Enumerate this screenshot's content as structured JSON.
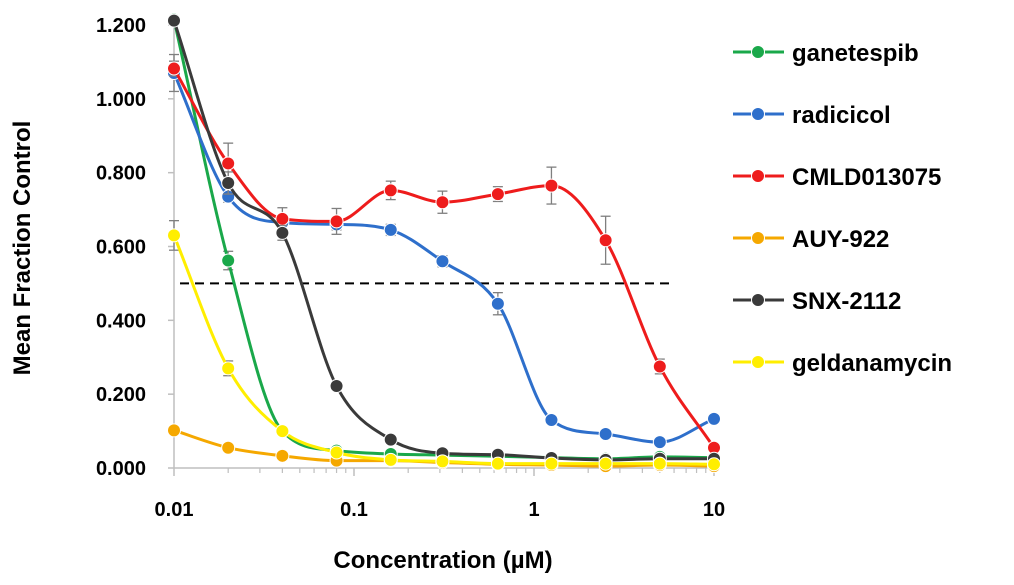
{
  "chart_data": {
    "type": "scatter",
    "xlabel": "Concentration (µM)",
    "ylabel": "Mean Fraction Control",
    "xscale": "log",
    "xlim": [
      0.01,
      10
    ],
    "ylim": [
      0,
      1.2
    ],
    "xticks": [
      0.01,
      0.1,
      1,
      10
    ],
    "xtick_labels": [
      "0.01",
      "0.1",
      "1",
      "10"
    ],
    "yticks": [
      0,
      0.2,
      0.4,
      0.6,
      0.8,
      1.0,
      1.2
    ],
    "ytick_labels": [
      "0.000",
      "0.200",
      "0.400",
      "0.600",
      "0.800",
      "1.000",
      "1.200"
    ],
    "grid": false,
    "legend_position": "right",
    "reference_line": {
      "y": 0.5,
      "style": "dashed",
      "x_range": [
        0.01,
        6
      ]
    },
    "series": [
      {
        "name": "ganetespib",
        "color": "#1aa84a",
        "x": [
          0.01,
          0.02,
          0.04,
          0.08,
          0.16,
          0.31,
          0.63,
          1.25,
          2.5,
          5,
          10
        ],
        "y": [
          1.215,
          0.562,
          0.1,
          0.047,
          0.038,
          0.035,
          0.032,
          0.028,
          0.025,
          0.03,
          0.028
        ],
        "err": [
          0,
          0.025,
          0.01,
          0.005,
          0.005,
          0.005,
          0.005,
          0.005,
          0.005,
          0.005,
          0.005
        ]
      },
      {
        "name": "radicicol",
        "color": "#2e6fcb",
        "x": [
          0.01,
          0.02,
          0.04,
          0.08,
          0.16,
          0.31,
          0.63,
          1.25,
          2.5,
          5,
          10
        ],
        "y": [
          1.07,
          0.735,
          0.665,
          0.66,
          0.645,
          0.56,
          0.445,
          0.13,
          0.092,
          0.07,
          0.133
        ],
        "err": [
          0.05,
          0.015,
          0.01,
          0.015,
          0.015,
          0.015,
          0.03,
          0.01,
          0.008,
          0.008,
          0.008
        ]
      },
      {
        "name": "CMLD013075",
        "color": "#ee1c1c",
        "x": [
          0.01,
          0.02,
          0.04,
          0.08,
          0.16,
          0.31,
          0.63,
          1.25,
          2.5,
          5,
          10
        ],
        "y": [
          1.082,
          0.825,
          0.675,
          0.668,
          0.752,
          0.72,
          0.742,
          0.765,
          0.617,
          0.275,
          0.055
        ],
        "err": [
          0.02,
          0.055,
          0.03,
          0.035,
          0.025,
          0.03,
          0.02,
          0.05,
          0.065,
          0.02,
          0.008
        ]
      },
      {
        "name": "AUY-922",
        "color": "#f5a800",
        "x": [
          0.01,
          0.02,
          0.04,
          0.08,
          0.16,
          0.31,
          0.63,
          1.25,
          2.5,
          5,
          10
        ],
        "y": [
          0.102,
          0.055,
          0.033,
          0.02,
          0.02,
          0.015,
          0.01,
          0.008,
          0.005,
          0.008,
          0.005
        ],
        "err": [
          0.005,
          0.005,
          0.004,
          0.004,
          0.004,
          0.004,
          0.004,
          0.004,
          0.004,
          0.004,
          0.004
        ]
      },
      {
        "name": "SNX-2112",
        "color": "#3a3a3a",
        "x": [
          0.01,
          0.02,
          0.04,
          0.08,
          0.16,
          0.31,
          0.63,
          1.25,
          2.5,
          5,
          10
        ],
        "y": [
          1.212,
          0.772,
          0.637,
          0.222,
          0.077,
          0.04,
          0.036,
          0.027,
          0.022,
          0.025,
          0.025
        ],
        "err": [
          0.01,
          0.03,
          0.02,
          0.01,
          0.008,
          0.005,
          0.005,
          0.005,
          0.005,
          0.005,
          0.005
        ]
      },
      {
        "name": "geldanamycin",
        "color": "#ffee00",
        "x": [
          0.01,
          0.02,
          0.04,
          0.08,
          0.16,
          0.31,
          0.63,
          1.25,
          2.5,
          5,
          10
        ],
        "y": [
          0.63,
          0.27,
          0.1,
          0.042,
          0.022,
          0.018,
          0.012,
          0.012,
          0.012,
          0.012,
          0.01
        ],
        "err": [
          0.04,
          0.02,
          0.01,
          0.005,
          0.004,
          0.004,
          0.004,
          0.004,
          0.004,
          0.004,
          0.004
        ]
      }
    ]
  }
}
